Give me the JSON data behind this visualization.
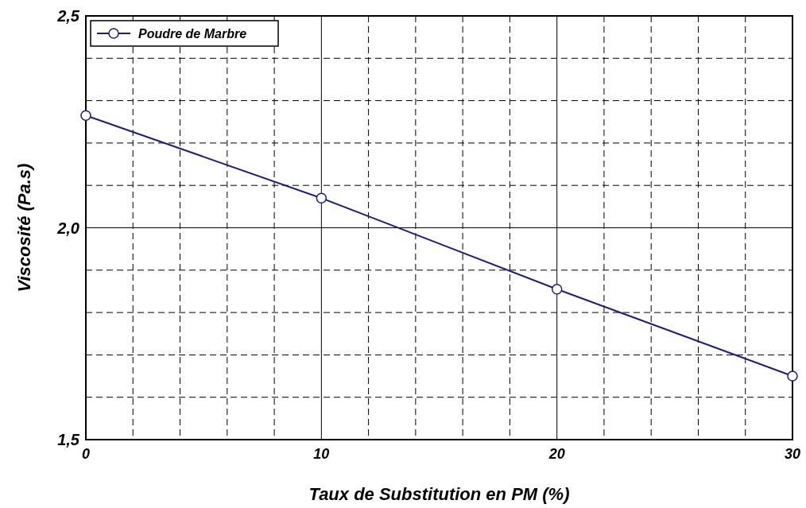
{
  "chart_data": {
    "type": "line",
    "xlabel": "Taux de Substitution en PM (%)",
    "ylabel": "Viscosité (Pa.s)",
    "x": [
      0,
      10,
      20,
      30
    ],
    "series": [
      {
        "name": "Poudre de Marbre",
        "color": "#1c1c8a",
        "values": [
          2.265,
          2.07,
          1.855,
          1.65
        ]
      }
    ],
    "xlim": [
      0,
      30
    ],
    "xticks": [
      0,
      {
        "value": 2,
        "label": null
      },
      {
        "value": 4,
        "label": null
      },
      {
        "value": 6,
        "label": null
      },
      {
        "value": 8,
        "label": null
      },
      10,
      {
        "value": 12,
        "label": null
      },
      {
        "value": 14,
        "label": null
      },
      {
        "value": 16,
        "label": null
      },
      {
        "value": 18,
        "label": null
      },
      20,
      {
        "value": 22,
        "label": null
      },
      {
        "value": 24,
        "label": null
      },
      {
        "value": 26,
        "label": null
      },
      {
        "value": 28,
        "label": null
      },
      30
    ],
    "ylim": [
      1.5,
      2.5
    ],
    "yticks": [
      {
        "value": 1.5,
        "label": "1,5"
      },
      {
        "value": 1.6,
        "label": null
      },
      {
        "value": 1.7,
        "label": null
      },
      {
        "value": 1.8,
        "label": null
      },
      {
        "value": 1.9,
        "label": null
      },
      {
        "value": 2.0,
        "label": "2,0"
      },
      {
        "value": 2.1,
        "label": null
      },
      {
        "value": 2.2,
        "label": null
      },
      {
        "value": 2.3,
        "label": null
      },
      {
        "value": 2.4,
        "label": null
      },
      {
        "value": 2.5,
        "label": "2,5"
      }
    ],
    "grid": true,
    "legend": "top left",
    "marker": "circle",
    "line_style": "solid"
  }
}
